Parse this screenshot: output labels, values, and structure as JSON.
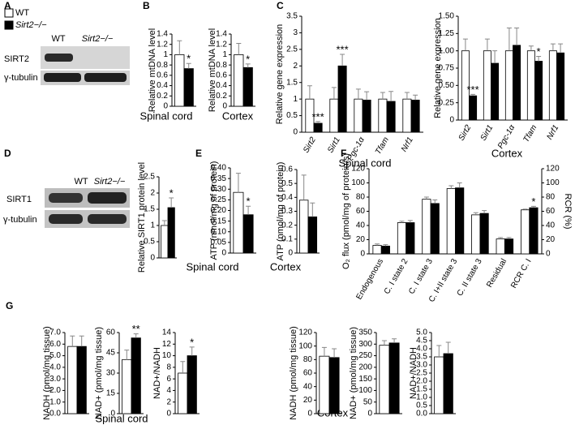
{
  "panels": [
    "A",
    "B",
    "C",
    "D",
    "E",
    "F",
    "G"
  ],
  "legend": [
    {
      "label": "WT",
      "color": "#ffffff"
    },
    {
      "label": "Sirt2−/−",
      "color": "#000000"
    }
  ],
  "blot_a": {
    "lanes": [
      "WT",
      "Sirt2−/−"
    ],
    "rows": [
      "SIRT2",
      "γ-tubulin"
    ]
  },
  "blot_d": {
    "lanes": [
      "WT",
      "Sirt2−/−"
    ],
    "rows": [
      "SIRT1",
      "γ-tubulin"
    ]
  },
  "chart_data": [
    {
      "type": "bar",
      "ylabel": "Relative mtDNA level",
      "xlabel": "Spinal cord",
      "ylim": [
        0,
        1.4
      ],
      "yticks": [
        0,
        0.2,
        0.4,
        0.6,
        0.8,
        1,
        1.2,
        1.4
      ],
      "series": [
        {
          "color": "#ffffff",
          "values": [
            1.0
          ],
          "errors": [
            0.27
          ]
        },
        {
          "color": "#000000",
          "values": [
            0.73
          ],
          "errors": [
            0.1
          ],
          "annotations": [
            "*"
          ]
        }
      ]
    },
    {
      "type": "bar",
      "ylabel": "Relative mtDNA level",
      "xlabel": "Cortex",
      "ylim": [
        0,
        1.4
      ],
      "yticks": [
        0,
        0.2,
        0.4,
        0.6,
        0.8,
        1,
        1.2,
        1.4
      ],
      "series": [
        {
          "color": "#ffffff",
          "values": [
            1.0
          ],
          "errors": [
            0.22
          ]
        },
        {
          "color": "#000000",
          "values": [
            0.75
          ],
          "errors": [
            0.07
          ],
          "annotations": [
            "*"
          ]
        }
      ]
    },
    {
      "type": "bar",
      "ylabel": "Relative gene expression",
      "xlabel": "Spinal cord",
      "ylim": [
        0,
        3.5
      ],
      "yticks": [
        0,
        0.5,
        1,
        1.5,
        2,
        2.5,
        3,
        3.5
      ],
      "categories": [
        "Sirt2",
        "Sirt1",
        "Pgc-1α",
        "Tfam",
        "Nrf1"
      ],
      "series": [
        {
          "color": "#ffffff",
          "values": [
            1.0,
            1.0,
            1.0,
            1.0,
            1.0
          ],
          "errors": [
            0.4,
            0.35,
            0.3,
            0.2,
            0.2
          ]
        },
        {
          "color": "#000000",
          "values": [
            0.27,
            2.0,
            0.97,
            0.93,
            0.97
          ],
          "errors": [
            0.05,
            0.35,
            0.25,
            0.3,
            0.15
          ],
          "annotations": [
            "***",
            "***",
            null,
            null,
            null
          ]
        }
      ]
    },
    {
      "type": "bar",
      "ylabel": "Relative gene expression",
      "xlabel": "Cortex",
      "ylim": [
        0,
        1.5
      ],
      "yticks": [
        0,
        0.25,
        {
          "value": 0.5,
          "label": "0.50"
        },
        0.75,
        {
          "value": 1,
          "label": "1.00"
        },
        1.25,
        {
          "value": 1.5,
          "label": "1.50"
        }
      ],
      "categories": [
        "Sirt2",
        "Sirt1",
        "Pgc-1α",
        "Tfam",
        "Nrf1"
      ],
      "series": [
        {
          "color": "#ffffff",
          "values": [
            1.0,
            1.0,
            1.0,
            1.0,
            1.0
          ],
          "errors": [
            0.17,
            0.17,
            0.33,
            0.07,
            0.1
          ]
        },
        {
          "color": "#000000",
          "values": [
            0.35,
            0.82,
            1.08,
            0.85,
            0.97
          ],
          "errors": [
            0.02,
            0.18,
            0.25,
            0.07,
            0.13
          ],
          "annotations": [
            "***",
            null,
            null,
            "*",
            null
          ]
        }
      ]
    },
    {
      "type": "bar",
      "ylabel": "Relative SIRT1 protein level",
      "ylim": [
        0,
        2.5
      ],
      "yticks": [
        0,
        0.5,
        1,
        1.5,
        2,
        2.5
      ],
      "series": [
        {
          "color": "#ffffff",
          "values": [
            1.0
          ],
          "errors": [
            0.15
          ]
        },
        {
          "color": "#000000",
          "values": [
            1.55
          ],
          "errors": [
            0.3
          ],
          "annotations": [
            "*"
          ]
        }
      ]
    },
    {
      "type": "bar",
      "ylabel": "ATP (nmol/mg of protein)",
      "xlabel": "Spinal cord",
      "ylim": [
        0,
        0.4
      ],
      "yticks": [
        0,
        0.05,
        {
          "value": 0.1,
          "label": "0.10"
        },
        0.15,
        {
          "value": 0.2,
          "label": "0.20"
        },
        0.25,
        {
          "value": 0.3,
          "label": "0.30"
        },
        0.35,
        {
          "value": 0.4,
          "label": "0.40"
        }
      ],
      "series": [
        {
          "color": "#ffffff",
          "values": [
            0.285
          ],
          "errors": [
            0.09
          ]
        },
        {
          "color": "#000000",
          "values": [
            0.18
          ],
          "errors": [
            0.04
          ],
          "annotations": [
            "*"
          ]
        }
      ]
    },
    {
      "type": "bar",
      "ylabel": "ATP (nmol/mg of protein)",
      "xlabel": "Cortex",
      "ylim": [
        0,
        0.6
      ],
      "yticks": [
        0,
        0.1,
        0.2,
        0.3,
        0.4,
        0.5,
        0.6
      ],
      "series": [
        {
          "color": "#ffffff",
          "values": [
            0.38
          ],
          "errors": [
            0.18
          ]
        },
        {
          "color": "#000000",
          "values": [
            0.26
          ],
          "errors": [
            0.1
          ]
        }
      ]
    },
    {
      "type": "bar",
      "ylabel": "O₂ flux (pmol/mg of protein/s)",
      "y2label": "RCR (%)",
      "ylim": [
        0,
        120
      ],
      "yticks": [
        0,
        20,
        40,
        60,
        80,
        100,
        120
      ],
      "y2lim": [
        0,
        120
      ],
      "y2ticks": [
        0,
        20,
        40,
        60,
        80,
        100,
        120
      ],
      "categories": [
        "Endogenous",
        "C. I state 2",
        "C. I state 3",
        "C. I+II state 3",
        "C. II state 3",
        "Residual",
        "RCR C. I"
      ],
      "series": [
        {
          "color": "#ffffff",
          "values": [
            12,
            44,
            77,
            92,
            55,
            21,
            62
          ],
          "errors": [
            2,
            2,
            3,
            4,
            3,
            2,
            1
          ]
        },
        {
          "color": "#000000",
          "values": [
            11,
            44,
            71,
            93,
            57,
            21,
            65
          ],
          "errors": [
            2,
            3,
            5,
            7,
            4,
            2,
            2
          ],
          "annotations": [
            null,
            null,
            null,
            null,
            null,
            null,
            "*"
          ]
        }
      ]
    },
    {
      "type": "bar",
      "ylabel": "NADH (pmol/mg tissue)",
      "ylim": [
        0,
        7
      ],
      "yticks": [
        {
          "value": 0,
          "label": "0.0"
        },
        {
          "value": 1,
          "label": "1.0"
        },
        {
          "value": 2,
          "label": "2.0"
        },
        {
          "value": 3,
          "label": "3.0"
        },
        {
          "value": 4,
          "label": "4.0"
        },
        {
          "value": 5,
          "label": "5.0"
        },
        {
          "value": 6,
          "label": "6.0"
        },
        {
          "value": 7,
          "label": "7.0"
        }
      ],
      "series": [
        {
          "color": "#ffffff",
          "values": [
            5.8
          ],
          "errors": [
            0.9
          ]
        },
        {
          "color": "#000000",
          "values": [
            5.8
          ],
          "errors": [
            0.9
          ]
        }
      ]
    },
    {
      "type": "bar",
      "ylabel": "NAD+ (pmol/mg tissue)",
      "xlabel": "Spinal cord",
      "ylim": [
        0,
        60
      ],
      "yticks": [
        0,
        15,
        30,
        45,
        60
      ],
      "series": [
        {
          "color": "#ffffff",
          "values": [
            40
          ],
          "errors": [
            7
          ]
        },
        {
          "color": "#000000",
          "values": [
            56
          ],
          "errors": [
            3
          ],
          "annotations": [
            "**"
          ]
        }
      ]
    },
    {
      "type": "bar",
      "ylabel": "NAD+/NADH",
      "ylim": [
        0,
        14
      ],
      "yticks": [
        0,
        2,
        4,
        6,
        8,
        10,
        12,
        14
      ],
      "series": [
        {
          "color": "#ffffff",
          "values": [
            7
          ],
          "errors": [
            2
          ]
        },
        {
          "color": "#000000",
          "values": [
            10
          ],
          "errors": [
            1.5
          ],
          "annotations": [
            "*"
          ]
        }
      ]
    },
    {
      "type": "bar",
      "ylabel": "NADH (pmol/mg tissue)",
      "xlabel": "Cortex",
      "ylim": [
        0,
        120
      ],
      "yticks": [
        0,
        20,
        40,
        60,
        80,
        100,
        120
      ],
      "series": [
        {
          "color": "#ffffff",
          "values": [
            85
          ],
          "errors": [
            13
          ]
        },
        {
          "color": "#000000",
          "values": [
            83
          ],
          "errors": [
            13
          ]
        }
      ]
    },
    {
      "type": "bar",
      "ylabel": "NAD+ (pmol/mg tissue)",
      "ylim": [
        0,
        350
      ],
      "yticks": [
        0,
        50,
        100,
        150,
        200,
        250,
        300,
        350
      ],
      "series": [
        {
          "color": "#ffffff",
          "values": [
            295
          ],
          "errors": [
            20
          ]
        },
        {
          "color": "#000000",
          "values": [
            305
          ],
          "errors": [
            18
          ]
        }
      ]
    },
    {
      "type": "bar",
      "ylabel": "NAD+/NADH",
      "ylim": [
        0,
        5
      ],
      "yticks": [
        {
          "value": 0,
          "label": "0.0"
        },
        {
          "value": 0.5,
          "label": "0.5"
        },
        {
          "value": 1,
          "label": "1.0"
        },
        {
          "value": 1.5,
          "label": "1.5"
        },
        {
          "value": 2,
          "label": "2.0"
        },
        {
          "value": 2.5,
          "label": "2.5"
        },
        {
          "value": 3,
          "label": "3.0"
        },
        {
          "value": 3.5,
          "label": "3.5"
        },
        {
          "value": 4,
          "label": "4.0"
        },
        {
          "value": 4.5,
          "label": "4.5"
        },
        {
          "value": 5,
          "label": "5.0"
        }
      ],
      "series": [
        {
          "color": "#ffffff",
          "values": [
            3.5
          ],
          "errors": [
            0.7
          ]
        },
        {
          "color": "#000000",
          "values": [
            3.7
          ],
          "errors": [
            0.7
          ]
        }
      ]
    }
  ]
}
